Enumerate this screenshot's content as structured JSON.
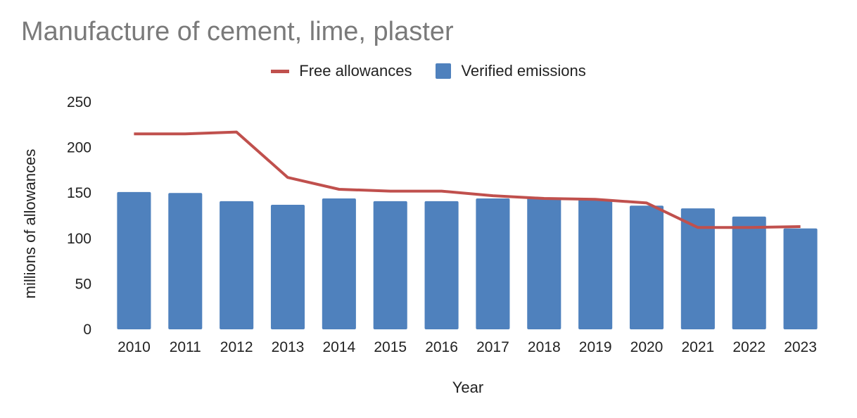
{
  "chart_data": {
    "type": "bar",
    "title": "Manufacture of cement, lime, plaster",
    "xlabel": "Year",
    "ylabel": "millions of allowances",
    "ylim": [
      0,
      250
    ],
    "yticks": [
      "0",
      "50",
      "100",
      "150",
      "200",
      "250"
    ],
    "categories": [
      "2010",
      "2011",
      "2012",
      "2013",
      "2014",
      "2015",
      "2016",
      "2017",
      "2018",
      "2019",
      "2020",
      "2021",
      "2022",
      "2023"
    ],
    "series": [
      {
        "name": "Verified emissions",
        "type": "bar",
        "color": "#4f81bd",
        "values": [
          151,
          150,
          141,
          137,
          144,
          141,
          141,
          144,
          145,
          143,
          136,
          133,
          124,
          111
        ]
      },
      {
        "name": "Free allowances",
        "type": "line",
        "color": "#c0504d",
        "values": [
          215,
          215,
          217,
          167,
          154,
          152,
          152,
          147,
          144,
          143,
          139,
          112,
          112,
          113
        ]
      }
    ],
    "grid": false,
    "legend": "top-center"
  }
}
